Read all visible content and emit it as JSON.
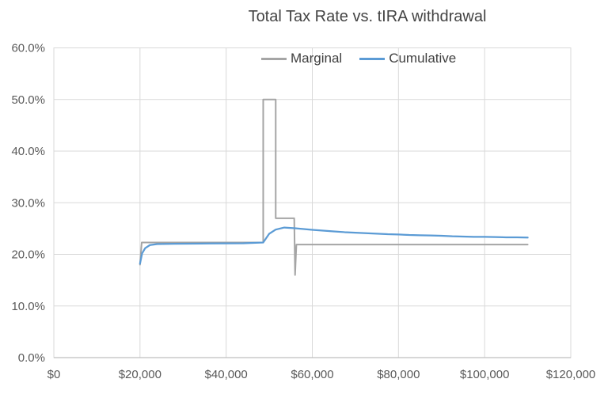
{
  "chart_data": {
    "type": "line",
    "title": "Total Tax Rate vs. tIRA withdrawal",
    "xlabel": "",
    "ylabel": "",
    "xlim": [
      0,
      120000
    ],
    "ylim": [
      0,
      60
    ],
    "x_ticks": [
      0,
      20000,
      40000,
      60000,
      80000,
      100000,
      120000
    ],
    "x_tick_labels": [
      "$0",
      "$20,000",
      "$40,000",
      "$60,000",
      "$80,000",
      "$100,000",
      "$120,000"
    ],
    "y_ticks": [
      0,
      10,
      20,
      30,
      40,
      50,
      60
    ],
    "y_tick_labels": [
      "0.0%",
      "10.0%",
      "20.0%",
      "30.0%",
      "40.0%",
      "50.0%",
      "60.0%"
    ],
    "grid": true,
    "legend_position": "top-center-inside",
    "colors": {
      "gridline": "#d9d9d9",
      "plot_border": "#d9d9d9",
      "axis_line": "#bfbfbf",
      "tick_label": "#595959",
      "title": "#444444",
      "marginal": "#a5a5a5",
      "cumulative": "#5b9bd5"
    },
    "series": [
      {
        "name": "Marginal",
        "color": "#a5a5a5",
        "stroke_width": 2,
        "points": [
          [
            20000,
            18.0
          ],
          [
            20400,
            22.3
          ],
          [
            48600,
            22.3
          ],
          [
            48600,
            50.0
          ],
          [
            51500,
            50.0
          ],
          [
            51500,
            27.0
          ],
          [
            55800,
            27.0
          ],
          [
            56000,
            16.0
          ],
          [
            56300,
            21.9
          ],
          [
            110000,
            21.9
          ]
        ]
      },
      {
        "name": "Cumulative",
        "color": "#5b9bd5",
        "stroke_width": 2.25,
        "points": [
          [
            20000,
            18.2
          ],
          [
            20500,
            20.2
          ],
          [
            21200,
            21.2
          ],
          [
            22300,
            21.8
          ],
          [
            24000,
            22.0
          ],
          [
            28000,
            22.05
          ],
          [
            36000,
            22.1
          ],
          [
            44000,
            22.15
          ],
          [
            48600,
            22.3
          ],
          [
            50000,
            24.0
          ],
          [
            51500,
            24.8
          ],
          [
            53500,
            25.2
          ],
          [
            56000,
            25.05
          ],
          [
            58000,
            24.9
          ],
          [
            60000,
            24.75
          ],
          [
            62500,
            24.6
          ],
          [
            65000,
            24.45
          ],
          [
            67500,
            24.3
          ],
          [
            70000,
            24.2
          ],
          [
            72500,
            24.1
          ],
          [
            75000,
            24.0
          ],
          [
            77500,
            23.9
          ],
          [
            80000,
            23.85
          ],
          [
            82500,
            23.75
          ],
          [
            85000,
            23.7
          ],
          [
            87500,
            23.65
          ],
          [
            90000,
            23.6
          ],
          [
            92500,
            23.5
          ],
          [
            95000,
            23.45
          ],
          [
            97500,
            23.4
          ],
          [
            100000,
            23.4
          ],
          [
            102500,
            23.35
          ],
          [
            105000,
            23.3
          ],
          [
            107500,
            23.3
          ],
          [
            110000,
            23.25
          ]
        ]
      }
    ]
  }
}
